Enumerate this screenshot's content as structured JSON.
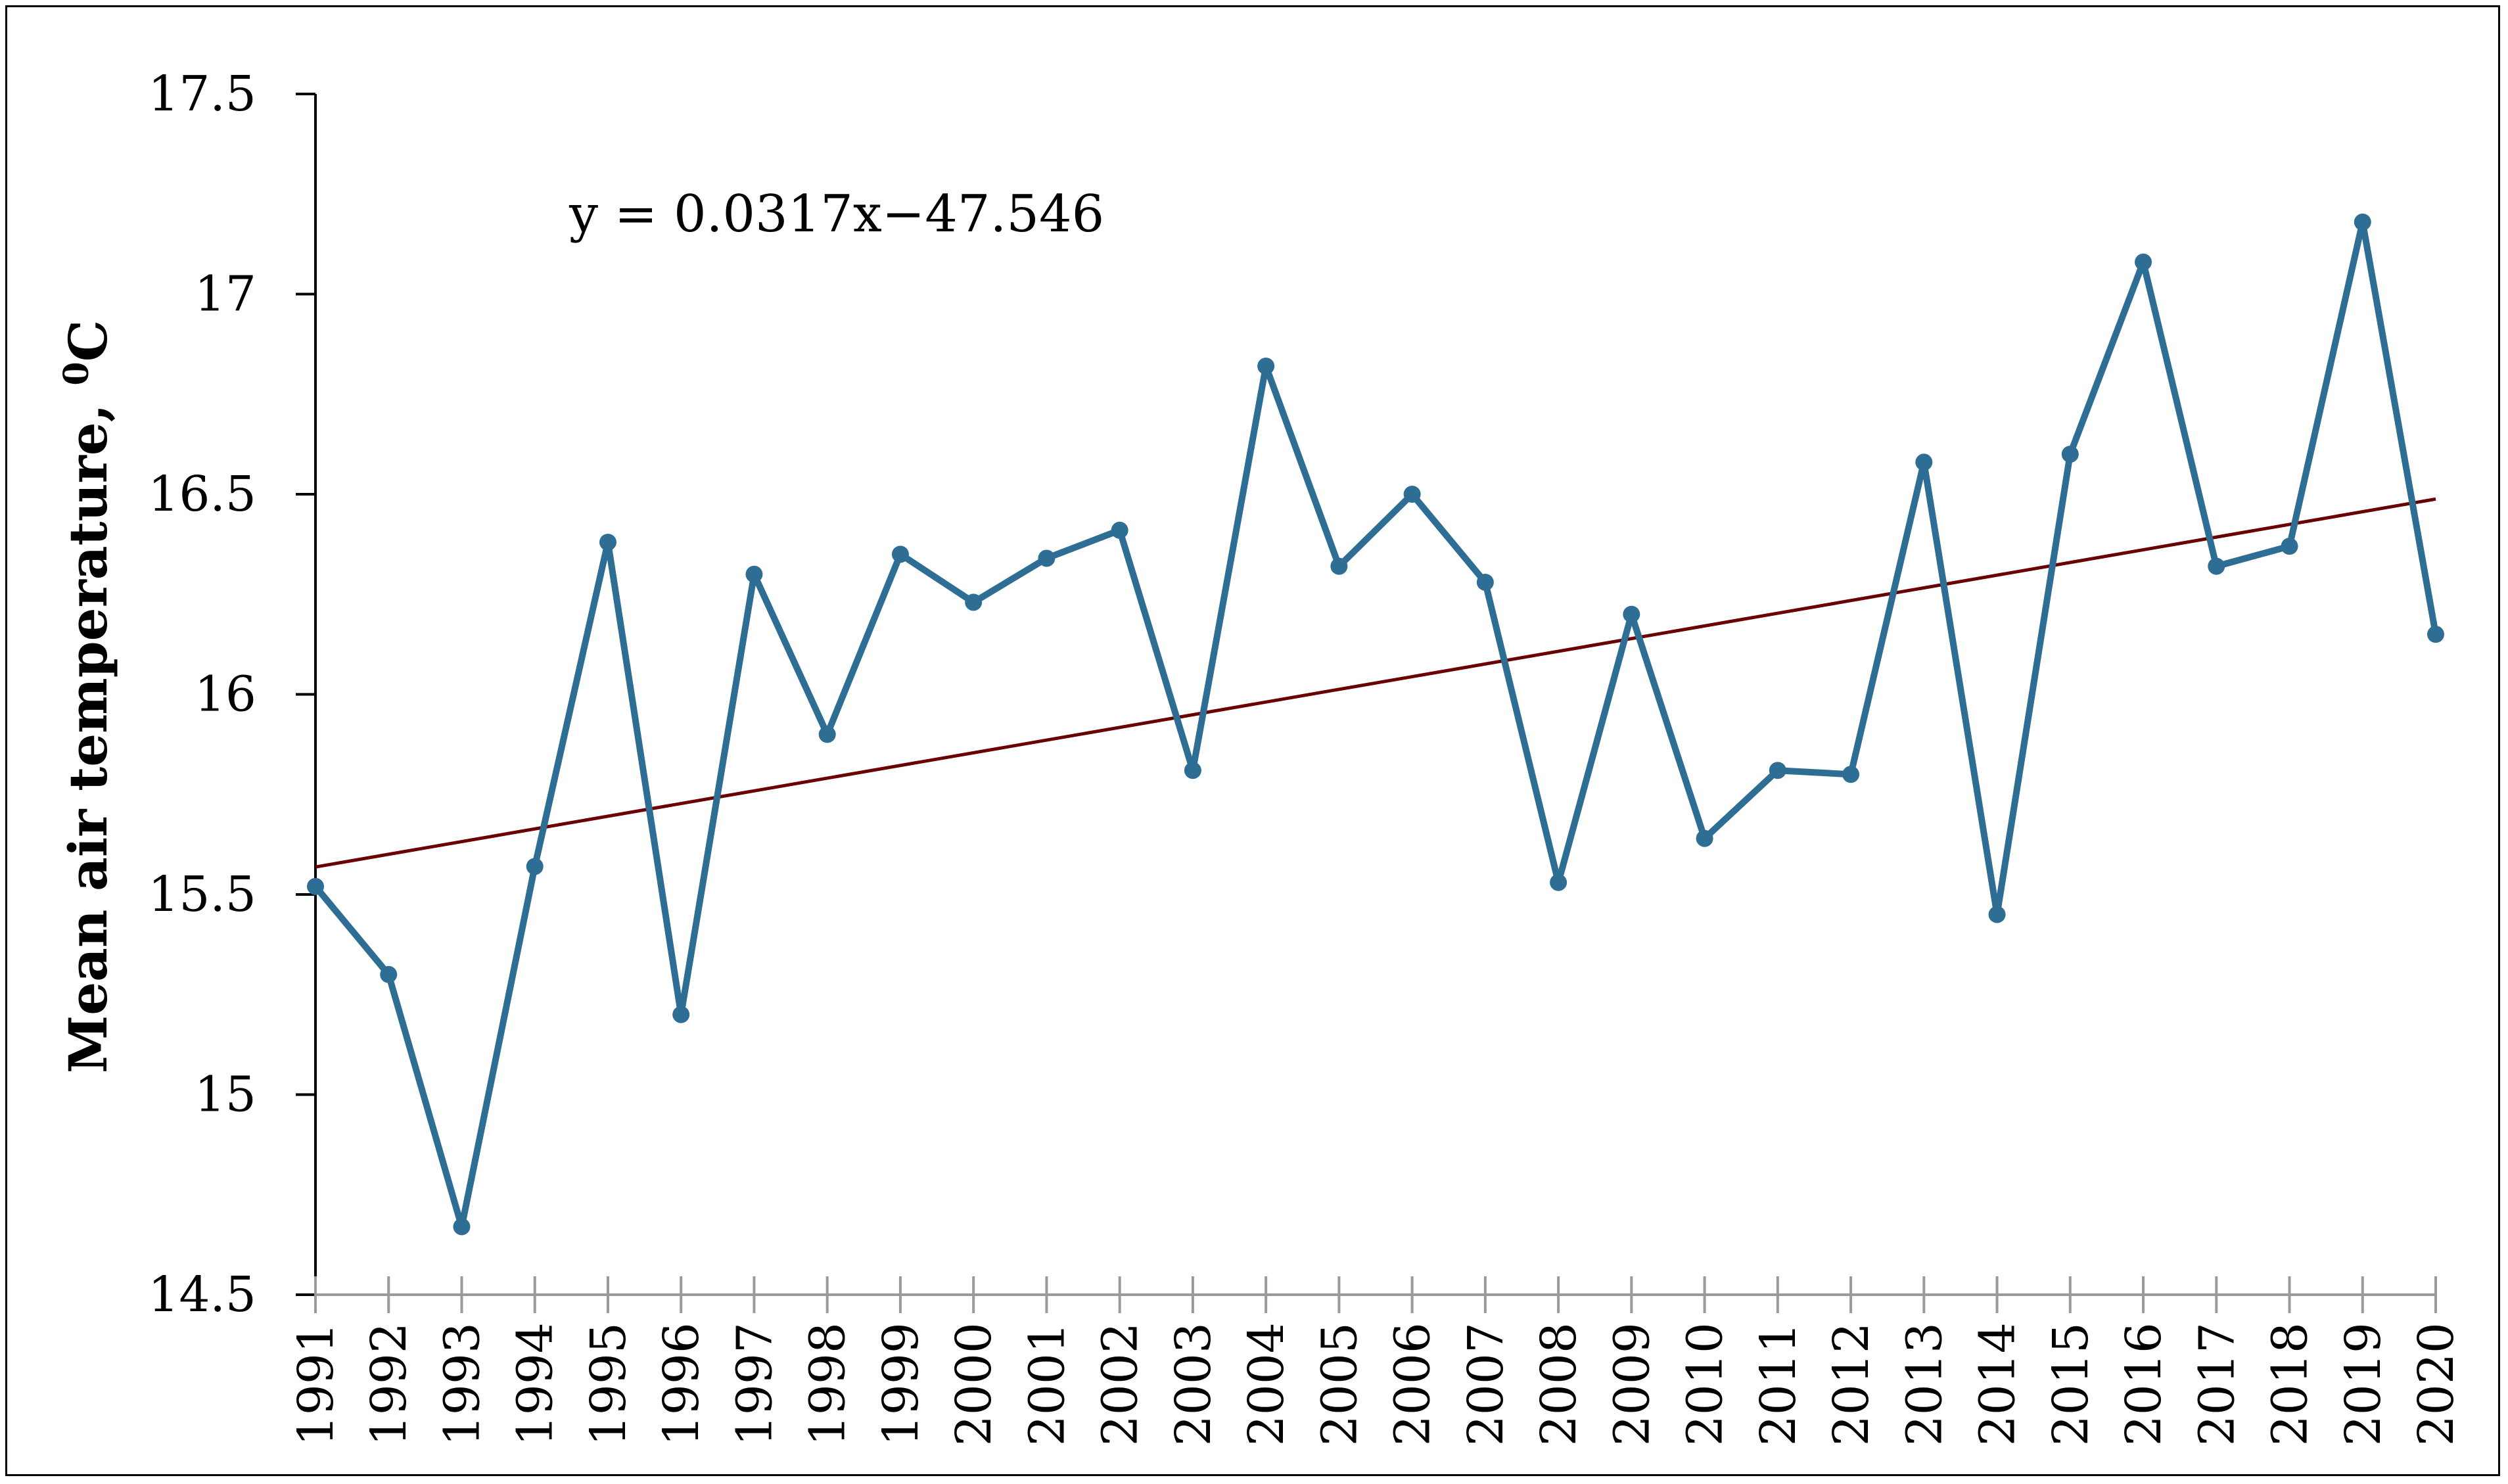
{
  "chart_data": {
    "type": "line",
    "title": "",
    "xlabel": "",
    "ylabel": "Mean air temperature, ",
    "ylabel_sup": "0",
    "ylabel_unit": "C",
    "ylim": [
      14.5,
      17.5
    ],
    "yticks": [
      14.5,
      15,
      15.5,
      16,
      16.5,
      17,
      17.5
    ],
    "ytick_labels": [
      "14.5",
      "15",
      "15.5",
      "16",
      "16.5",
      "17",
      "17.5"
    ],
    "categories": [
      "1991",
      "1992",
      "1993",
      "1994",
      "1995",
      "1996",
      "1997",
      "1998",
      "1999",
      "2000",
      "2001",
      "2002",
      "2003",
      "2004",
      "2005",
      "2006",
      "2007",
      "2008",
      "2009",
      "2010",
      "2011",
      "2012",
      "2013",
      "2014",
      "2015",
      "2016",
      "2017",
      "2018",
      "2019",
      "2020"
    ],
    "series": [
      {
        "name": "Mean air temperature",
        "color": "#2e6e94",
        "values": [
          15.52,
          15.3,
          14.67,
          15.57,
          16.38,
          15.2,
          16.3,
          15.9,
          16.35,
          16.23,
          16.34,
          16.41,
          15.81,
          16.82,
          16.32,
          16.5,
          16.28,
          15.53,
          16.2,
          15.64,
          15.81,
          15.8,
          16.58,
          15.45,
          16.6,
          17.08,
          16.32,
          16.37,
          17.18,
          16.15
        ]
      }
    ],
    "trendline": {
      "equation": "y = 0.0317x−47.546",
      "slope": 0.0317,
      "intercept": -47.546,
      "color": "#6b0000"
    },
    "grid": false,
    "legend": "none"
  }
}
